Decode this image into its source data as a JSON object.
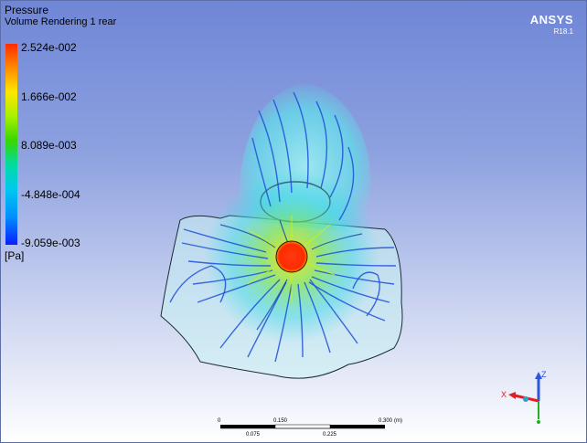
{
  "legend": {
    "title": "Pressure",
    "subtitle": "Volume Rendering 1 rear",
    "ticks": [
      "2.524e-002",
      "1.666e-002",
      "8.089e-003",
      "-4.848e-004",
      "-9.059e-003"
    ],
    "units": "[Pa]"
  },
  "brand": {
    "name": "ANSYS",
    "version": "R18.1"
  },
  "scale_bar": {
    "top_labels": [
      "0",
      "0.150",
      "0.300"
    ],
    "unit": "(m)",
    "bottom_labels": [
      "0.075",
      "0.225"
    ]
  },
  "axes_triad": {
    "x": "X",
    "z": "Z"
  },
  "colors": {
    "background_top": "#6f86d6",
    "background_bottom": "#ffffff",
    "high_pressure": "#ff2a00",
    "low_pressure": "#0a1dff"
  }
}
